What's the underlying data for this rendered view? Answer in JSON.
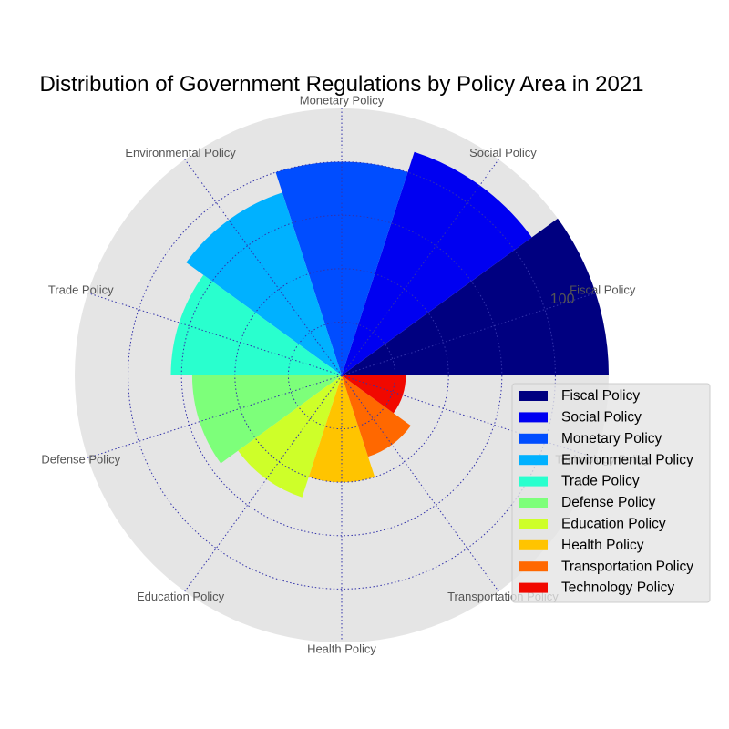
{
  "chart_data": {
    "type": "polar-bar",
    "title": "Distribution of Government Regulations by Policy Area in 2021",
    "categories": [
      "Fiscal Policy",
      "Social Policy",
      "Monetary Policy",
      "Environmental Policy",
      "Trade Policy",
      "Defense Policy",
      "Education Policy",
      "Health Policy",
      "Transportation Policy",
      "Technology Policy"
    ],
    "values": [
      125,
      110,
      100,
      90,
      80,
      70,
      60,
      50,
      40,
      30
    ],
    "rtick_labels": [
      "100"
    ],
    "rtick_value": 100,
    "rlim": [
      0,
      125
    ],
    "grid": true,
    "legend_placement": "lower-right",
    "colors": [
      "#000080",
      "#0000f1",
      "#004dff",
      "#00b1ff",
      "#29ffce",
      "#7dff7a",
      "#ceff29",
      "#ffc400",
      "#ff6800",
      "#f10800"
    ],
    "background_color": "#e5e5e5",
    "grid_color": "#3333aa"
  }
}
